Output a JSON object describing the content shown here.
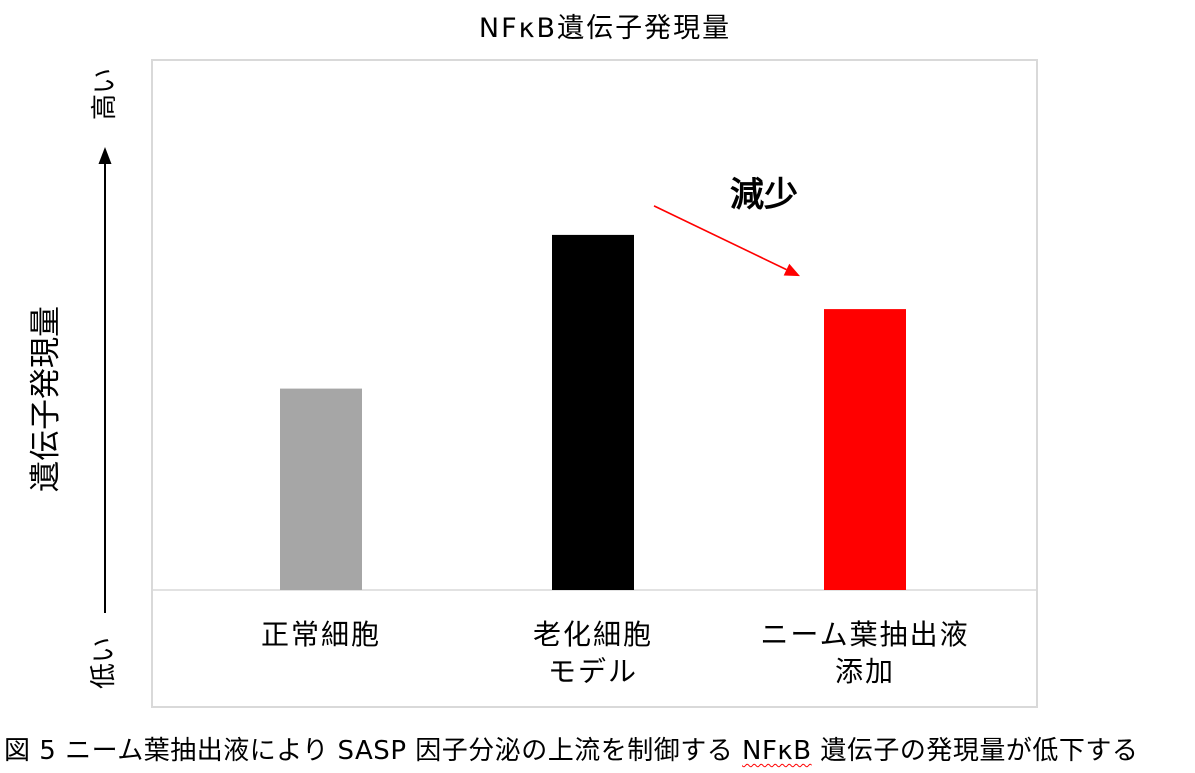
{
  "chart_data": {
    "type": "bar",
    "title": "NFκB遺伝子発現量",
    "ylabel": "遺伝子発現量",
    "y_high_label": "高い",
    "y_low_label": "低い",
    "categories": [
      [
        "正常細胞"
      ],
      [
        "老化細胞",
        "モデル"
      ],
      [
        "ニーム葉抽出液",
        "添加"
      ]
    ],
    "values": [
      0.38,
      0.67,
      0.53
    ],
    "ylim": [
      0,
      1
    ],
    "colors": [
      "#a6a6a6",
      "#000000",
      "#ff0000"
    ],
    "grid": false,
    "annotation": {
      "text": "減少",
      "color": "#ff0000",
      "from_index": 1,
      "to_index": 2
    }
  },
  "caption": {
    "before": "図 5 ニーム葉抽出液により SASP 因子分泌の上流を制御する",
    "term": "NFκB",
    "after": "遺伝子の発現量が低下する"
  }
}
